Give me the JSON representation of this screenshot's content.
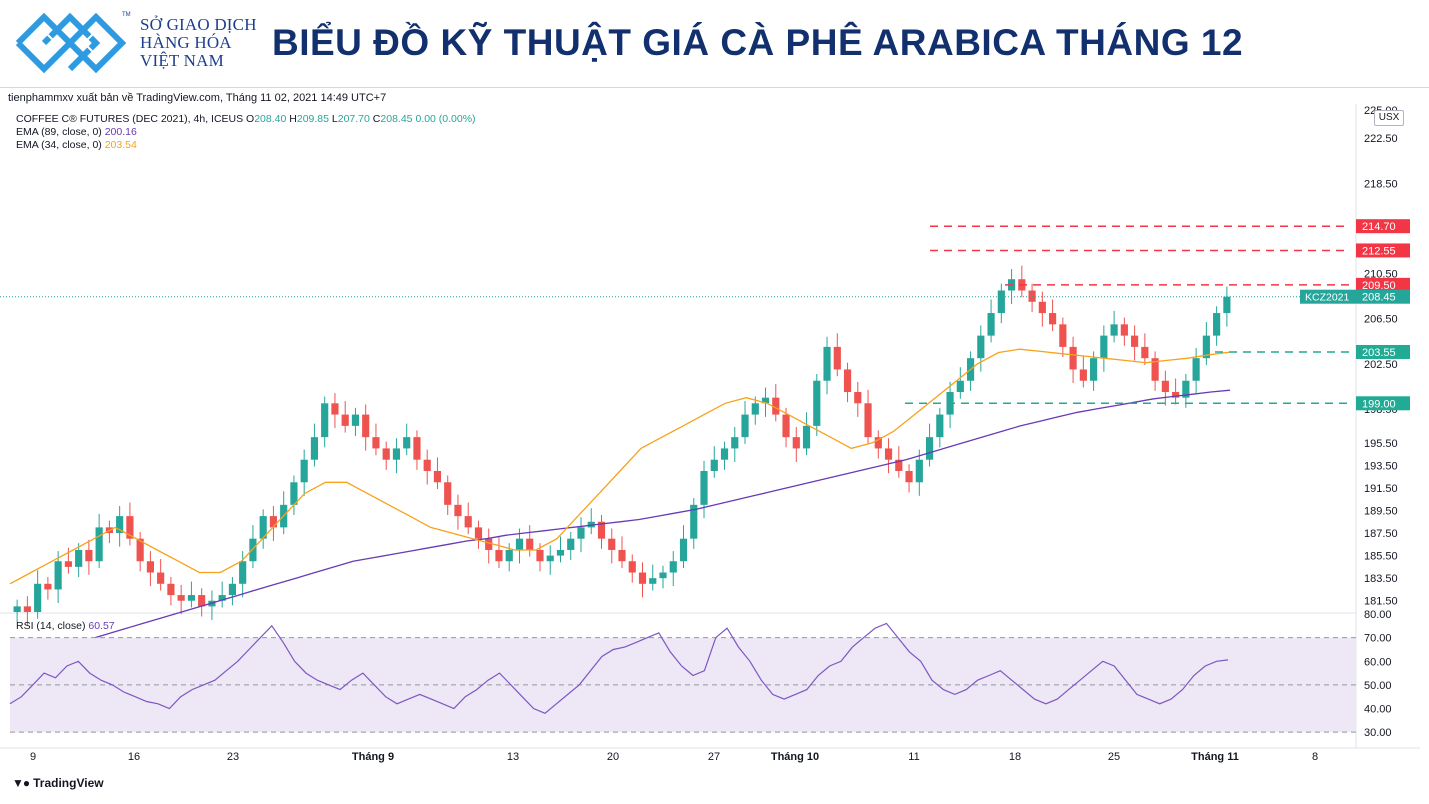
{
  "header": {
    "logo_lines": [
      "SỞ GIAO DỊCH",
      "HÀNG HÓA",
      "VIỆT NAM"
    ],
    "logo_tm": "TM",
    "title": "BIỂU ĐỒ KỸ THUẬT GIÁ CÀ PHÊ ARABICA THÁNG 12"
  },
  "credit": "tienphammxv xuất bản về TradingView.com, Tháng 11 02, 2021 14:49 UTC+7",
  "legend": {
    "symbol": "COFFEE C® FUTURES (DEC 2021), 4h, ICEUS",
    "o_label": "O",
    "o": "208.40",
    "h_label": "H",
    "h": "209.85",
    "l_label": "L",
    "l": "207.70",
    "c_label": "C",
    "c": "208.45",
    "change": "0.00 (0.00%)",
    "ema1_label": "EMA (89, close, 0)",
    "ema1_value": "200.16",
    "ema2_label": "EMA (34, close, 0)",
    "ema2_value": "203.54",
    "rsi_label": "RSI (14, close)",
    "rsi_value": "60.57"
  },
  "currency_label": "USX",
  "footer_brand": "TradingView",
  "colors": {
    "up": "#26a69a",
    "down": "#ef5350",
    "ema89": "#673ab7",
    "ema34": "#f7a21b",
    "red_level": "#f23645",
    "green_level": "#22ab94",
    "rsi": "#7e57c2",
    "rsi_band": "#ede7f6"
  },
  "chart_data": {
    "type": "candlestick",
    "price_axis_ticks": [
      "225.00",
      "222.50",
      "218.50",
      "210.50",
      "206.50",
      "202.50",
      "198.50",
      "195.50",
      "193.50",
      "191.50",
      "189.50",
      "187.50",
      "185.50",
      "183.50",
      "181.50"
    ],
    "price_ylim": [
      180.5,
      225
    ],
    "x_ticks": [
      "9",
      "16",
      "23",
      "Tháng 9",
      "13",
      "20",
      "27",
      "Tháng 10",
      "11",
      "18",
      "25",
      "Tháng 11",
      "8"
    ],
    "levels": [
      {
        "value": 214.7,
        "label": "214.70",
        "color": "red"
      },
      {
        "value": 212.55,
        "label": "212.55",
        "color": "red"
      },
      {
        "value": 209.5,
        "label": "209.50",
        "color": "red"
      },
      {
        "value": 203.55,
        "label": "203.55",
        "color": "green"
      },
      {
        "value": 199.0,
        "label": "199.00",
        "color": "green"
      }
    ],
    "last_price": {
      "label": "KCZ2021",
      "value": "208.45",
      "price": 208.45
    },
    "series": [
      {
        "name": "COFFEE C® FUTURES (DEC 2021)",
        "kind": "close",
        "values": [
          181,
          180.5,
          183,
          182.5,
          185,
          184.5,
          186,
          185,
          188,
          187.5,
          189,
          187,
          185,
          184,
          183,
          182,
          181.5,
          182,
          181,
          181.5,
          182,
          183,
          185,
          187,
          189,
          188,
          190,
          192,
          194,
          196,
          199,
          198,
          197,
          198,
          196,
          195,
          194,
          195,
          196,
          194,
          193,
          192,
          190,
          189,
          188,
          187,
          186,
          185,
          186,
          187,
          186,
          185,
          185.5,
          186,
          187,
          188,
          188.5,
          187,
          186,
          185,
          184,
          183,
          183.5,
          184,
          185,
          187,
          190,
          193,
          194,
          195,
          196,
          198,
          199,
          199.5,
          198,
          196,
          195,
          197,
          201,
          204,
          202,
          200,
          199,
          196,
          195,
          194,
          193,
          192,
          194,
          196,
          198,
          200,
          201,
          203,
          205,
          207,
          209,
          210,
          209,
          208,
          207,
          206,
          204,
          202,
          201,
          203,
          205,
          206,
          205,
          204,
          203,
          201,
          200,
          199.5,
          201,
          203,
          205,
          207,
          208.45
        ]
      },
      {
        "name": "EMA (89, close, 0)",
        "values": [
          176,
          176.5,
          177,
          177.5,
          178,
          178.5,
          179,
          179.5,
          180,
          180.5,
          181,
          181.5,
          182,
          182.5,
          183,
          183.5,
          184,
          184.5,
          185,
          185.3,
          185.6,
          185.9,
          186.2,
          186.5,
          186.8,
          187,
          187.3,
          187.5,
          187.7,
          187.9,
          188.1,
          188.3,
          188.5,
          188.7,
          189,
          189.3,
          189.6,
          190,
          190.4,
          190.8,
          191.2,
          191.6,
          192,
          192.4,
          192.8,
          193.2,
          193.6,
          194,
          194.5,
          195,
          195.5,
          196,
          196.5,
          197,
          197.4,
          197.8,
          198.2,
          198.5,
          198.8,
          199.1,
          199.4,
          199.6,
          199.8,
          200,
          200.16
        ]
      },
      {
        "name": "EMA (34, close, 0)",
        "values": [
          183,
          184,
          185,
          186,
          187,
          188,
          187,
          186,
          185,
          184,
          184,
          185,
          187,
          189,
          191,
          192,
          192,
          191,
          190,
          189,
          188,
          187.5,
          187,
          186.5,
          186,
          186,
          187,
          189,
          191,
          193,
          195,
          196,
          197,
          198,
          199,
          199.5,
          199,
          198,
          197,
          196,
          195,
          195.5,
          196.5,
          198,
          199.5,
          201,
          202.5,
          203.5,
          203.8,
          203.6,
          203.4,
          203.2,
          203,
          202.8,
          202.6,
          202.8,
          203,
          203.3,
          203.54
        ]
      }
    ],
    "rsi": {
      "name": "RSI (14, close)",
      "ylim": [
        25,
        80
      ],
      "ticks": [
        "80.00",
        "70.00",
        "60.00",
        "50.00",
        "40.00",
        "30.00"
      ],
      "band": [
        30,
        70
      ],
      "midline": 50,
      "values": [
        42,
        45,
        50,
        55,
        53,
        58,
        60,
        55,
        52,
        50,
        47,
        45,
        43,
        42,
        40,
        45,
        48,
        50,
        52,
        56,
        60,
        65,
        70,
        75,
        68,
        60,
        55,
        52,
        50,
        48,
        52,
        55,
        50,
        45,
        42,
        44,
        46,
        44,
        42,
        40,
        45,
        48,
        52,
        55,
        50,
        45,
        40,
        38,
        42,
        46,
        50,
        56,
        62,
        65,
        66,
        68,
        70,
        72,
        64,
        58,
        54,
        56,
        70,
        74,
        66,
        60,
        52,
        46,
        44,
        46,
        48,
        54,
        58,
        60,
        66,
        70,
        74,
        76,
        70,
        64,
        60,
        52,
        48,
        46,
        48,
        52,
        54,
        56,
        52,
        48,
        44,
        42,
        44,
        48,
        52,
        56,
        60,
        58,
        52,
        46,
        44,
        42,
        44,
        48,
        54,
        58,
        60,
        60.57
      ]
    }
  }
}
